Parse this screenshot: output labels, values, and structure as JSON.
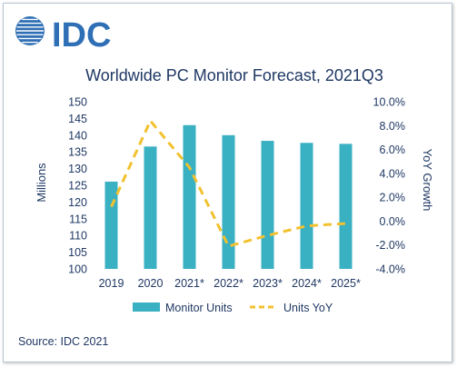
{
  "logo": {
    "text": "IDC",
    "color": "#2f6fb5"
  },
  "chart_data": {
    "type": "bar",
    "title": "Worldwide PC Monitor Forecast, 2021Q3",
    "categories": [
      "2019",
      "2020",
      "2021*",
      "2022*",
      "2023*",
      "2024*",
      "2025*"
    ],
    "ylabel": "Millions",
    "y2label": "YoY Growth",
    "ylim": [
      100,
      150
    ],
    "y2lim": [
      -4.0,
      10.0
    ],
    "yticks": [
      "150",
      "145",
      "140",
      "135",
      "130",
      "125",
      "120",
      "115",
      "110",
      "105",
      "100"
    ],
    "y2ticks": [
      "10.0%",
      "8.0%",
      "6.0%",
      "4.0%",
      "2.0%",
      "0.0%",
      "-2.0%",
      "-4.0%"
    ],
    "series": [
      {
        "name": "Monitor Units",
        "type": "bar",
        "axis": "left",
        "color": "#3ab0c3",
        "values": [
          126.1,
          136.6,
          143.0,
          140.0,
          138.3,
          137.7,
          137.4
        ]
      },
      {
        "name": "Units YoY",
        "type": "line",
        "axis": "right",
        "color": "#f2c12e",
        "style": "dashed",
        "values": [
          1.2,
          8.4,
          4.5,
          -2.1,
          -1.2,
          -0.4,
          -0.2
        ]
      }
    ],
    "legend_position": "bottom",
    "grid": false
  },
  "source": "Source: IDC 2021"
}
